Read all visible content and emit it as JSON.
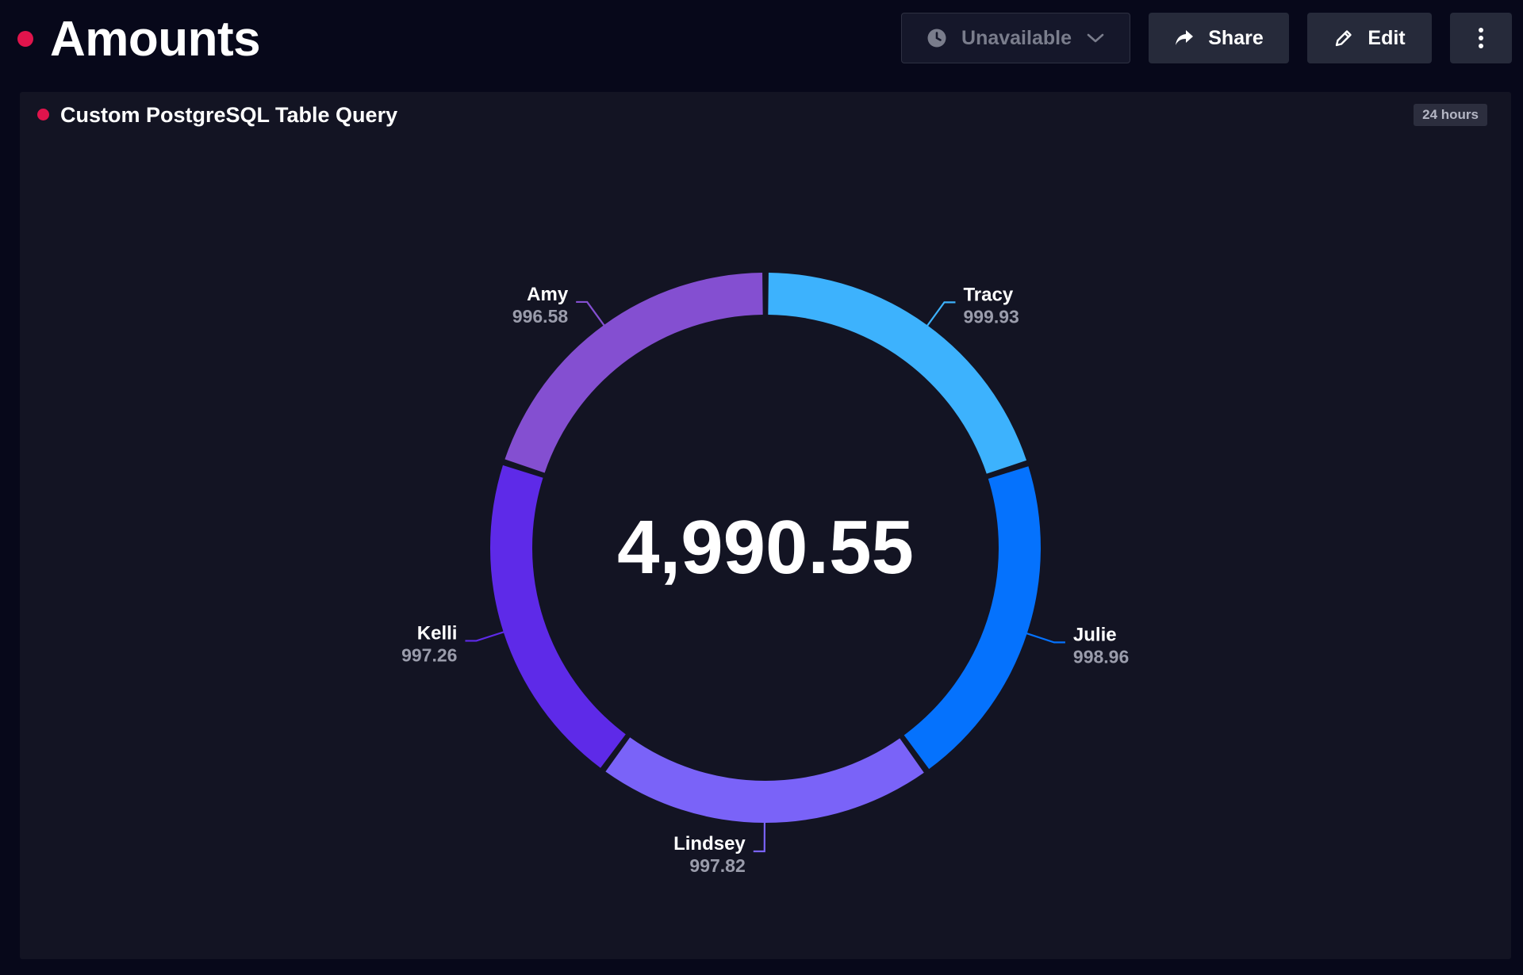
{
  "header": {
    "title": "Amounts",
    "time_button": {
      "label": "Unavailable",
      "icon": "clock-icon"
    },
    "share_button": {
      "label": "Share",
      "icon": "share-icon"
    },
    "edit_button": {
      "label": "Edit",
      "icon": "pencil-icon"
    },
    "more_button": {
      "icon": "more-vertical-icon"
    }
  },
  "panel": {
    "title": "Custom PostgreSQL Table Query",
    "time_range": "24 hours"
  },
  "colors": {
    "status_dot": "#e0144c",
    "background": "#07081a",
    "panel_background": "#131423"
  },
  "chart_data": {
    "type": "pie",
    "total_label": "4,990.55",
    "categories": [
      "Tracy",
      "Julie",
      "Lindsey",
      "Kelli",
      "Amy"
    ],
    "values": [
      999.93,
      998.96,
      997.82,
      997.26,
      996.58
    ],
    "value_labels": [
      "999.93",
      "998.96",
      "997.82",
      "997.26",
      "996.58"
    ],
    "colors": [
      "#3db2fd",
      "#0572fd",
      "#7a63f8",
      "#5e2ae8",
      "#844fd1"
    ],
    "legend": "none"
  }
}
